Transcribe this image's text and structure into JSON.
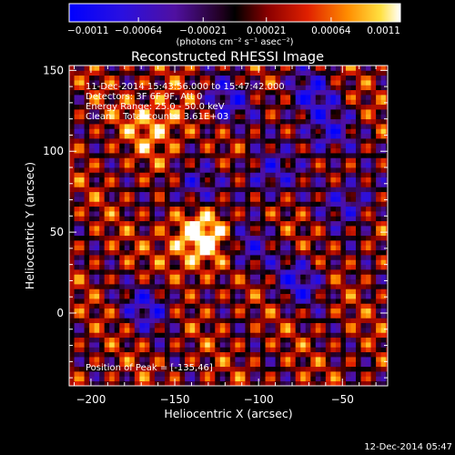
{
  "chart_data": {
    "type": "heatmap",
    "title": "Reconstructed RHESSI Image",
    "xlabel": "Heliocentric X (arcsec)",
    "ylabel": "Heliocentric Y (arcsec)",
    "xlim": [
      -213,
      -23
    ],
    "ylim": [
      -45,
      153
    ],
    "xticks": [
      -200,
      -150,
      -100,
      -50
    ],
    "yticks": [
      0,
      50,
      100,
      150
    ],
    "xtick_labels": [
      "−200",
      "−150",
      "−100",
      "−50"
    ],
    "ytick_labels": [
      "0",
      "50",
      "100",
      "150"
    ],
    "colorbar": {
      "range": [
        -0.0011,
        0.0011
      ],
      "ticks": [
        -0.0011,
        -0.00064,
        -0.00021,
        0.00021,
        0.00064,
        0.0011
      ],
      "tick_labels": [
        "−0.0011",
        "−0.00064",
        "−0.00021",
        "0.00021",
        "0.00064",
        "0.0011"
      ],
      "unit_label": "(photons cm⁻² s⁻¹ asec⁻²)"
    },
    "annotations": [
      "11-Dec-2014 15:43:56.000 to 15:47:42.000",
      "Detectors: 3F 6F 9F, Att 0",
      "Energy Range: 25.0 - 50.0 keV",
      "Clean    Total counts: 3.61E+03"
    ],
    "peak_label": "Position of Peak = [-135,46]",
    "peak": [
      -135,
      46
    ],
    "secondary_source": [
      -160,
      118
    ]
  },
  "footer": {
    "timestamp": "12-Dec-2014 05:47"
  }
}
